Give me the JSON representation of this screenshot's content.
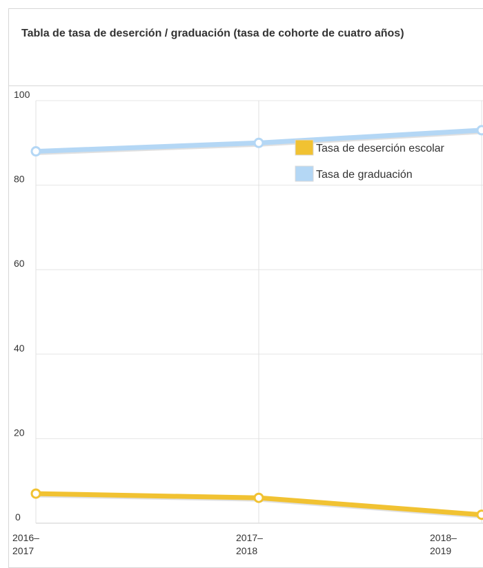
{
  "panel": {
    "title": "Tabla de tasa de deserción / graduación (tasa de cohorte de cuatro años)"
  },
  "chart_data": {
    "type": "line",
    "title": "Tabla de tasa de deserción / graduación (tasa de cohorte de cuatro años)",
    "xlabel": "",
    "ylabel": "",
    "categories": [
      [
        "2016–",
        "2017"
      ],
      [
        "2017–",
        "2018"
      ],
      [
        "2018–",
        "2019"
      ]
    ],
    "ylim": [
      0,
      100
    ],
    "yticks": [
      0,
      20,
      40,
      60,
      80,
      100
    ],
    "grid": true,
    "legend_position": "top-right",
    "series": [
      {
        "name": "Tasa de deserción escolar",
        "values": [
          7,
          6,
          2
        ],
        "color": "#f1c232"
      },
      {
        "name": "Tasa de graduación",
        "values": [
          88,
          90,
          93
        ],
        "color": "#b4d7f5"
      }
    ]
  }
}
